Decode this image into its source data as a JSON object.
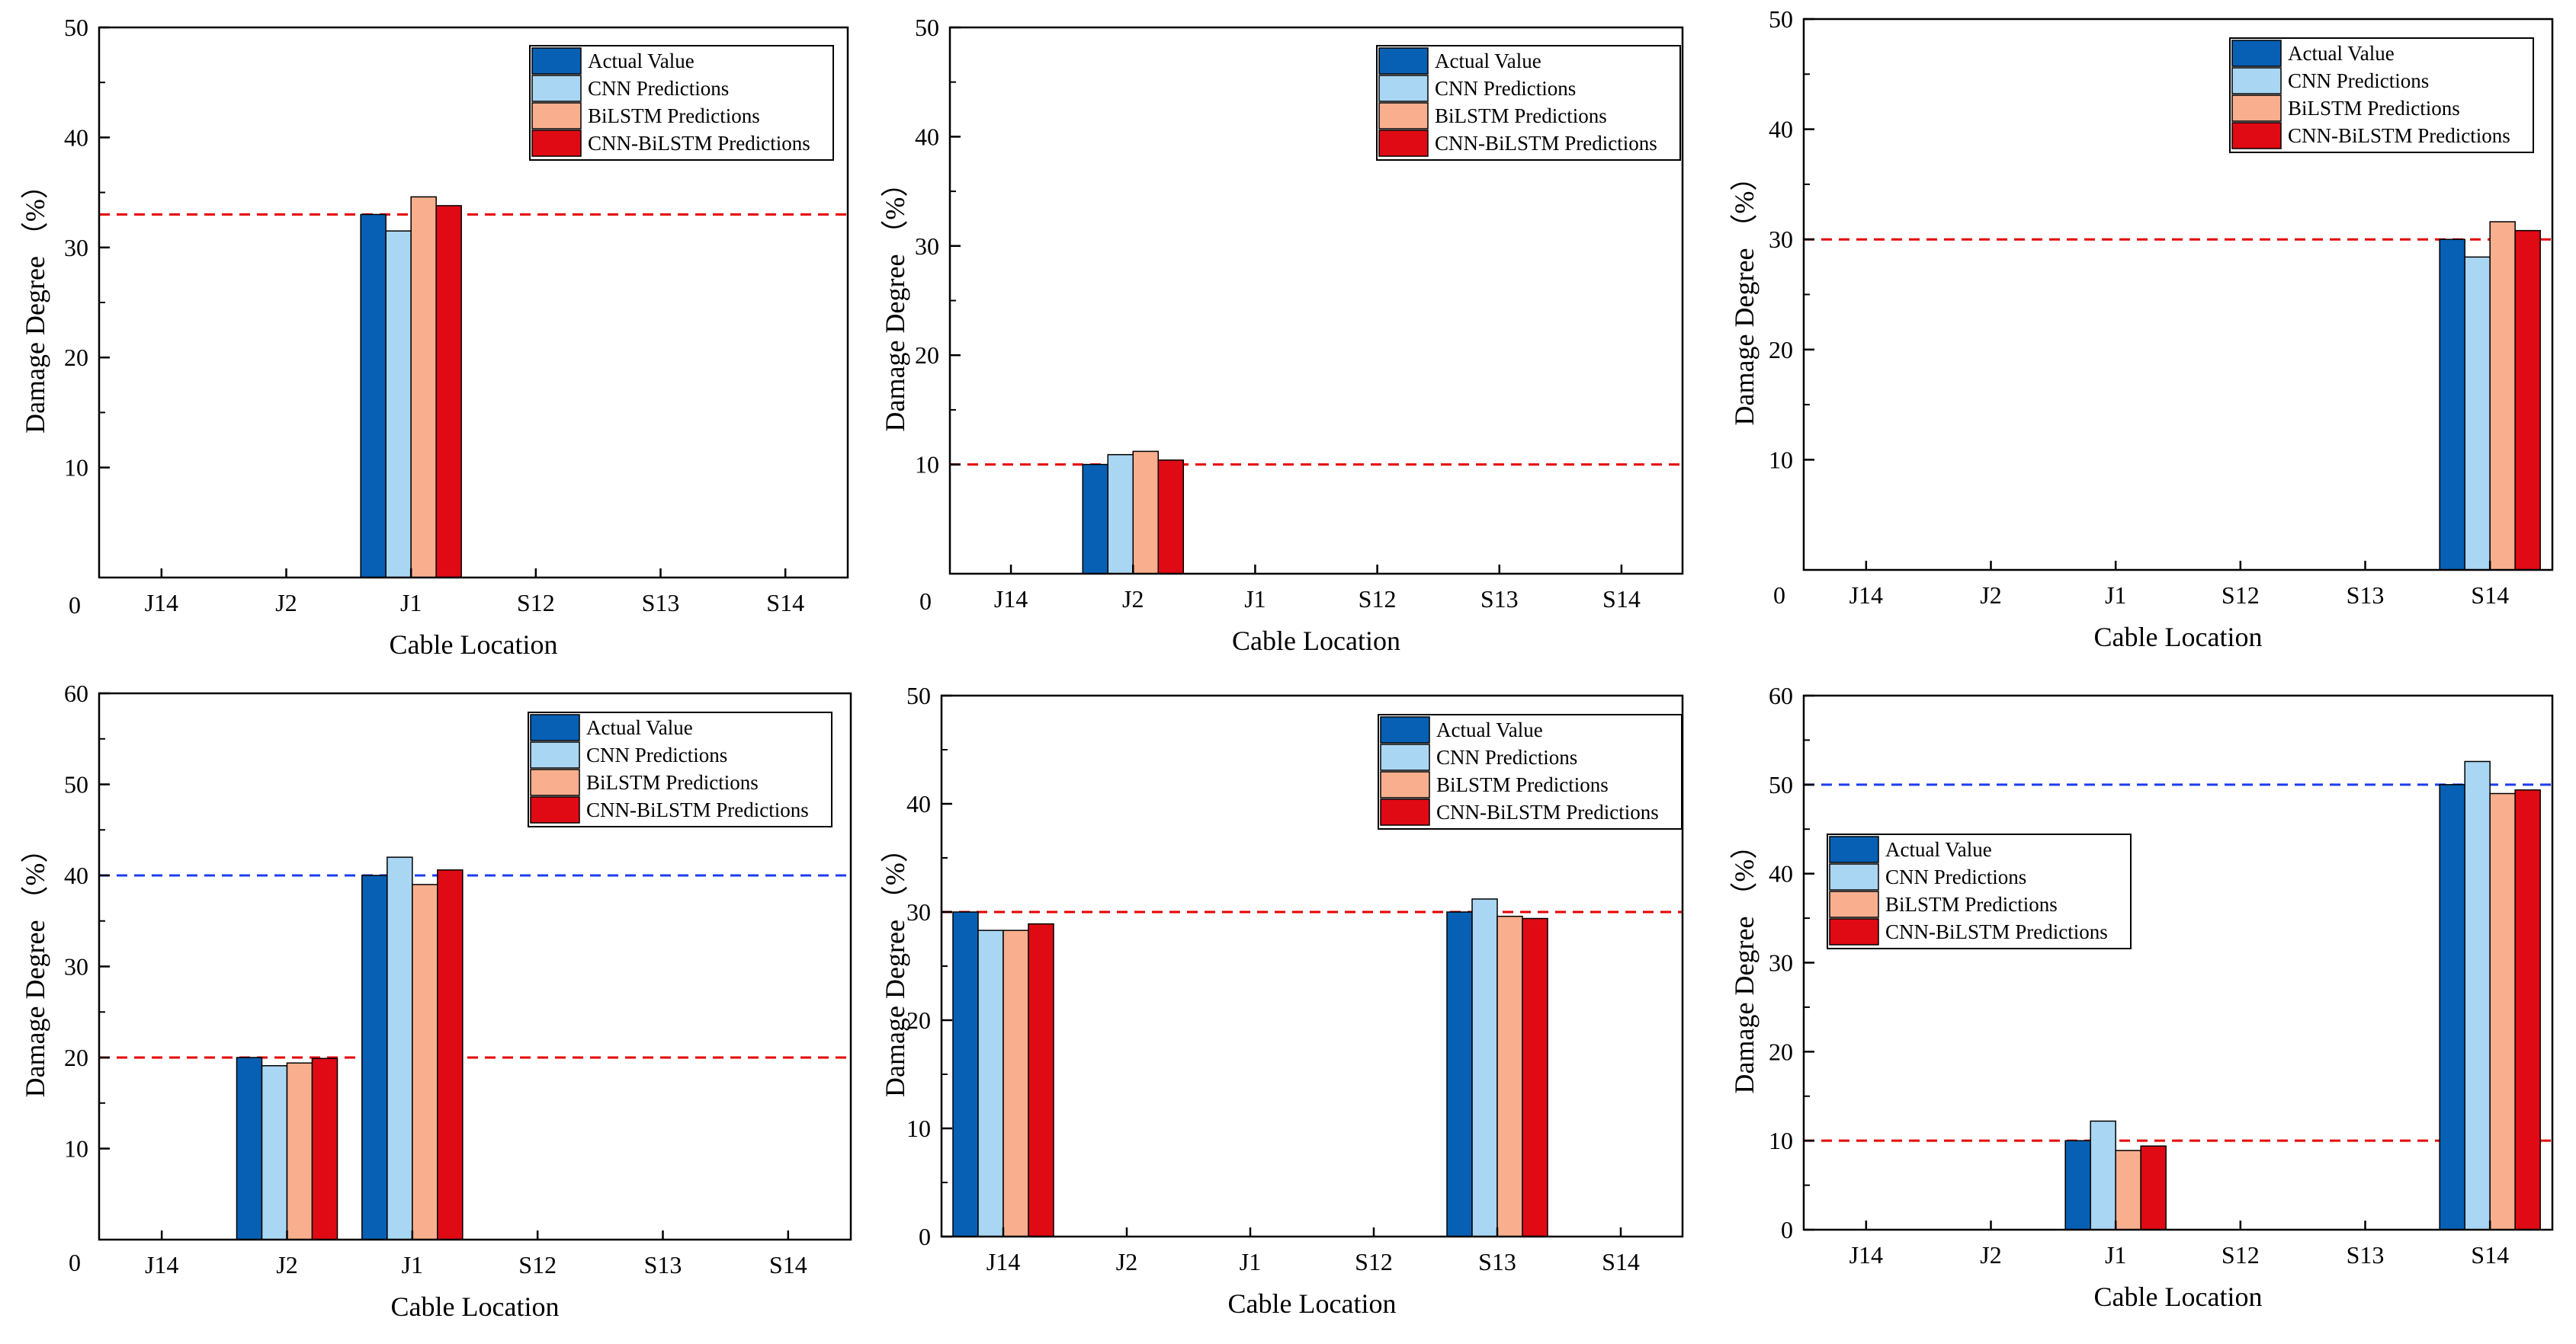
{
  "colors": {
    "actual": "#0860B4",
    "cnn": "#A9D6F2",
    "bilstm": "#F9AF8E",
    "cnn_bilstm": "#E00A14",
    "ref_red": "#E60000",
    "ref_blue": "#1E3CF0",
    "axis": "#000000",
    "bar_edge": "#000000"
  },
  "chart_data": [
    {
      "type": "bar",
      "categories": [
        "J14",
        "J2",
        "J1",
        "S12",
        "S13",
        "S14"
      ],
      "xlabel": "Cable Location",
      "ylabel": "Damage Degree （%）",
      "ylim": [
        0,
        50
      ],
      "yticks": [
        10,
        20,
        30,
        40,
        50
      ],
      "ytick_labels": [
        "10",
        "20",
        "30",
        "40",
        "50"
      ],
      "zero_label": "0",
      "series": [
        {
          "name": "Actual Value",
          "values": [
            0,
            0,
            33,
            0,
            0,
            0
          ]
        },
        {
          "name": "CNN Predictions",
          "values": [
            0,
            0,
            31.5,
            0,
            0,
            0
          ]
        },
        {
          "name": "BiLSTM Predictions",
          "values": [
            0,
            0,
            34.6,
            0,
            0,
            0
          ]
        },
        {
          "name": "CNN-BiLSTM Predictions",
          "values": [
            0,
            0,
            33.8,
            0,
            0,
            0
          ]
        }
      ],
      "reference_lines": [
        {
          "value": 33,
          "color": "red"
        }
      ],
      "legend_position": "top-right",
      "grid": false
    },
    {
      "type": "bar",
      "categories": [
        "J14",
        "J2",
        "J1",
        "S12",
        "S13",
        "S14"
      ],
      "xlabel": "Cable Location",
      "ylabel": "Damage Degree （%）",
      "ylim": [
        0,
        50
      ],
      "yticks": [
        10,
        20,
        30,
        40,
        50
      ],
      "ytick_labels": [
        "10",
        "20",
        "30",
        "40",
        "50"
      ],
      "zero_label": "0",
      "series": [
        {
          "name": "Actual Value",
          "values": [
            0,
            10,
            0,
            0,
            0,
            0
          ]
        },
        {
          "name": "CNN Predictions",
          "values": [
            0,
            10.9,
            0,
            0,
            0,
            0
          ]
        },
        {
          "name": "BiLSTM Predictions",
          "values": [
            0,
            11.2,
            0,
            0,
            0,
            0
          ]
        },
        {
          "name": "CNN-BiLSTM Predictions",
          "values": [
            0,
            10.4,
            0,
            0,
            0,
            0
          ]
        }
      ],
      "reference_lines": [
        {
          "value": 10,
          "color": "red"
        }
      ],
      "legend_position": "top-right",
      "grid": false
    },
    {
      "type": "bar",
      "categories": [
        "J14",
        "J2",
        "J1",
        "S12",
        "S13",
        "S14"
      ],
      "xlabel": "Cable Location",
      "ylabel": "Damage Degree （%）",
      "ylim": [
        0,
        50
      ],
      "yticks": [
        10,
        20,
        30,
        40,
        50
      ],
      "ytick_labels": [
        "10",
        "20",
        "30",
        "40",
        "50"
      ],
      "zero_label": "0",
      "series": [
        {
          "name": "Actual Value",
          "values": [
            0,
            0,
            0,
            0,
            0,
            30
          ]
        },
        {
          "name": "CNN Predictions",
          "values": [
            0,
            0,
            0,
            0,
            0,
            28.4
          ]
        },
        {
          "name": "BiLSTM Predictions",
          "values": [
            0,
            0,
            0,
            0,
            0,
            31.6
          ]
        },
        {
          "name": "CNN-BiLSTM Predictions",
          "values": [
            0,
            0,
            0,
            0,
            0,
            30.8
          ]
        }
      ],
      "reference_lines": [
        {
          "value": 30,
          "color": "red"
        }
      ],
      "legend_position": "top-right",
      "grid": false
    },
    {
      "type": "bar",
      "categories": [
        "J14",
        "J2",
        "J1",
        "S12",
        "S13",
        "S14"
      ],
      "xlabel": "Cable Location",
      "ylabel": "Damage Degree （%）",
      "ylim": [
        0,
        60
      ],
      "yticks": [
        10,
        20,
        30,
        40,
        50,
        60
      ],
      "ytick_labels": [
        "10",
        "20",
        "30",
        "40",
        "50",
        "60"
      ],
      "zero_label": "0",
      "series": [
        {
          "name": "Actual Value",
          "values": [
            0,
            20,
            40,
            0,
            0,
            0
          ]
        },
        {
          "name": "CNN Predictions",
          "values": [
            0,
            19.1,
            42,
            0,
            0,
            0
          ]
        },
        {
          "name": "BiLSTM Predictions",
          "values": [
            0,
            19.4,
            39,
            0,
            0,
            0
          ]
        },
        {
          "name": "CNN-BiLSTM Predictions",
          "values": [
            0,
            19.9,
            40.6,
            0,
            0,
            0
          ]
        }
      ],
      "reference_lines": [
        {
          "value": 20,
          "color": "red"
        },
        {
          "value": 40,
          "color": "blue"
        }
      ],
      "legend_position": "top-right",
      "grid": false
    },
    {
      "type": "bar",
      "categories": [
        "J14",
        "J2",
        "J1",
        "S12",
        "S13",
        "S14"
      ],
      "xlabel": "Cable Location",
      "ylabel": "Damage Degree （%）",
      "ylim": [
        0,
        50
      ],
      "yticks": [
        0,
        10,
        20,
        30,
        40,
        50
      ],
      "ytick_labels": [
        "0",
        "10",
        "20",
        "30",
        "40",
        "50"
      ],
      "zero_label": "",
      "series": [
        {
          "name": "Actual Value",
          "values": [
            30,
            0,
            0,
            0,
            30,
            0
          ]
        },
        {
          "name": "CNN Predictions",
          "values": [
            28.3,
            0,
            0,
            0,
            31.2,
            0
          ]
        },
        {
          "name": "BiLSTM Predictions",
          "values": [
            28.3,
            0,
            0,
            0,
            29.6,
            0
          ]
        },
        {
          "name": "CNN-BiLSTM Predictions",
          "values": [
            28.9,
            0,
            0,
            0,
            29.4,
            0
          ]
        }
      ],
      "reference_lines": [
        {
          "value": 30,
          "color": "red"
        }
      ],
      "legend_position": "top-right",
      "grid": false
    },
    {
      "type": "bar",
      "categories": [
        "J14",
        "J2",
        "J1",
        "S12",
        "S13",
        "S14"
      ],
      "xlabel": "Cable Location",
      "ylabel": "Damage Degree （%）",
      "ylim": [
        0,
        60
      ],
      "yticks": [
        0,
        10,
        20,
        30,
        40,
        50,
        60
      ],
      "ytick_labels": [
        "0",
        "10",
        "20",
        "30",
        "40",
        "50",
        "60"
      ],
      "zero_label": "",
      "series": [
        {
          "name": "Actual Value",
          "values": [
            0,
            0,
            10,
            0,
            0,
            50
          ]
        },
        {
          "name": "CNN Predictions",
          "values": [
            0,
            0,
            12.2,
            0,
            0,
            52.6
          ]
        },
        {
          "name": "BiLSTM Predictions",
          "values": [
            0,
            0,
            8.9,
            0,
            0,
            49
          ]
        },
        {
          "name": "CNN-BiLSTM Predictions",
          "values": [
            0,
            0,
            9.4,
            0,
            0,
            49.4
          ]
        }
      ],
      "reference_lines": [
        {
          "value": 10,
          "color": "red"
        },
        {
          "value": 50,
          "color": "blue"
        }
      ],
      "legend_position": "middle-left",
      "grid": false
    }
  ]
}
